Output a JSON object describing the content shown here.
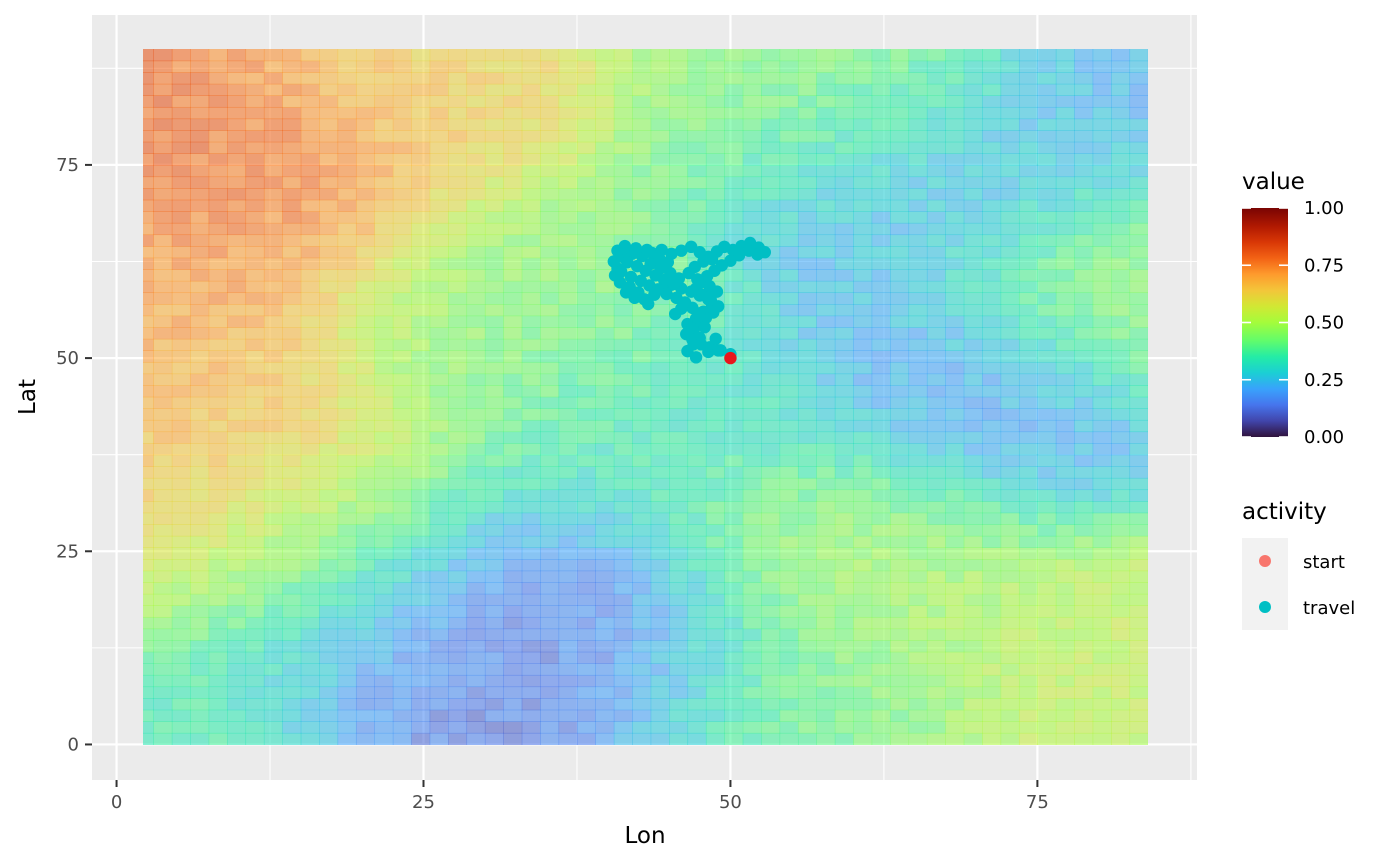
{
  "chart_data": {
    "type": "heatmap",
    "xlabel": "Lon",
    "ylabel": "Lat",
    "xlim": [
      -2,
      88
    ],
    "ylim": [
      -4.6,
      94.4
    ],
    "x_ticks": [
      0,
      25,
      50,
      75
    ],
    "y_ticks": [
      0,
      25,
      50,
      75
    ],
    "x_tick_labels": [
      "0",
      "25",
      "50",
      "75"
    ],
    "y_tick_labels": [
      "0",
      "25",
      "50",
      "75"
    ],
    "grid": true,
    "raster": {
      "x_range": [
        0,
        90
      ],
      "y_range": [
        0,
        90
      ],
      "colormap": "turbo",
      "opacity": 0.55,
      "hotspots": [
        {
          "x": 5,
          "y": 78,
          "value": 0.92
        },
        {
          "x": 3,
          "y": 86,
          "value": 0.85
        },
        {
          "x": 8,
          "y": 68,
          "value": 0.82
        },
        {
          "x": 2,
          "y": 62,
          "value": 0.75
        },
        {
          "x": 6,
          "y": 42,
          "value": 0.74
        },
        {
          "x": 3,
          "y": 30,
          "value": 0.7
        },
        {
          "x": 20,
          "y": 88,
          "value": 0.66
        },
        {
          "x": 33,
          "y": 6,
          "value": 0.04
        },
        {
          "x": 37,
          "y": 14,
          "value": 0.08
        },
        {
          "x": 22,
          "y": 15,
          "value": 0.15
        },
        {
          "x": 70,
          "y": 45,
          "value": 0.14
        },
        {
          "x": 68,
          "y": 73,
          "value": 0.16
        },
        {
          "x": 85,
          "y": 85,
          "value": 0.18
        },
        {
          "x": 82,
          "y": 60,
          "value": 0.5
        },
        {
          "x": 60,
          "y": 25,
          "value": 0.5
        },
        {
          "x": 85,
          "y": 10,
          "value": 0.55
        },
        {
          "x": 52,
          "y": 5,
          "value": 0.42
        },
        {
          "x": 45,
          "y": 40,
          "value": 0.32
        },
        {
          "x": 30,
          "y": 55,
          "value": 0.45
        },
        {
          "x": 60,
          "y": 85,
          "value": 0.45
        },
        {
          "x": 3,
          "y": 5,
          "value": 0.35
        },
        {
          "x": 15,
          "y": 25,
          "value": 0.48
        }
      ]
    },
    "series": [
      {
        "name": "travel",
        "color": "#00BFC4",
        "points": [
          [
            50,
            50.5
          ],
          [
            49.2,
            51
          ],
          [
            48.2,
            50.8
          ],
          [
            47.2,
            50.1
          ],
          [
            46.5,
            50.9
          ],
          [
            47,
            51.8
          ],
          [
            47.5,
            52.6
          ],
          [
            47,
            53.5
          ],
          [
            46.5,
            54.4
          ],
          [
            47.2,
            55.1
          ],
          [
            47.8,
            56
          ],
          [
            48.5,
            56.8
          ],
          [
            48.2,
            57.6
          ],
          [
            47.5,
            58.1
          ],
          [
            46.8,
            58.6
          ],
          [
            46,
            59
          ],
          [
            45.2,
            59.5
          ],
          [
            44.5,
            58.9
          ],
          [
            43.8,
            58.2
          ],
          [
            43,
            57.6
          ],
          [
            42.5,
            58.5
          ],
          [
            41.8,
            59.2
          ],
          [
            41,
            59.8
          ],
          [
            40.6,
            60.7
          ],
          [
            40.8,
            61.6
          ],
          [
            40.5,
            62.5
          ],
          [
            41.2,
            63.1
          ],
          [
            42,
            63.5
          ],
          [
            42.8,
            63.2
          ],
          [
            43.6,
            63.6
          ],
          [
            44.4,
            64
          ],
          [
            45.2,
            63.5
          ],
          [
            46,
            63.9
          ],
          [
            46.8,
            64.4
          ],
          [
            47.5,
            63.7
          ],
          [
            48.2,
            63.1
          ],
          [
            48.9,
            63.8
          ],
          [
            49.5,
            64.4
          ],
          [
            50.2,
            64
          ],
          [
            50.9,
            64.5
          ],
          [
            51.6,
            64.9
          ],
          [
            52.3,
            64.3
          ],
          [
            52.8,
            63.7
          ],
          [
            52.2,
            63.4
          ],
          [
            51.5,
            63.9
          ],
          [
            50.7,
            63.3
          ],
          [
            50,
            62.6
          ],
          [
            49.3,
            62
          ],
          [
            48.7,
            61.3
          ],
          [
            48.1,
            60.6
          ],
          [
            47.6,
            59.8
          ],
          [
            47.2,
            59
          ],
          [
            47.7,
            58.2
          ],
          [
            48.4,
            57.5
          ],
          [
            49,
            56.7
          ],
          [
            48.6,
            55.9
          ],
          [
            48,
            55.2
          ],
          [
            47.4,
            54.5
          ],
          [
            46.9,
            53.8
          ],
          [
            46.4,
            53.1
          ],
          [
            46.9,
            52.4
          ],
          [
            47.6,
            51.8
          ],
          [
            48.3,
            51.4
          ],
          [
            49,
            51
          ],
          [
            43.5,
            62.2
          ],
          [
            44.3,
            61.6
          ],
          [
            45.1,
            61
          ],
          [
            45.8,
            60.3
          ],
          [
            45.4,
            59.6
          ],
          [
            44.6,
            60.1
          ],
          [
            43.9,
            60.7
          ],
          [
            43.1,
            61.3
          ],
          [
            42.4,
            61.9
          ],
          [
            41.6,
            62.4
          ],
          [
            41.1,
            61.2
          ],
          [
            41.9,
            60.5
          ],
          [
            42.7,
            60
          ],
          [
            43.4,
            59.4
          ],
          [
            44.1,
            58.9
          ],
          [
            44.8,
            58.3
          ],
          [
            45.6,
            57.8
          ],
          [
            46.3,
            57.2
          ],
          [
            46.9,
            56.5
          ],
          [
            47.5,
            55.8
          ],
          [
            48.1,
            57.9
          ],
          [
            48.9,
            58.6
          ],
          [
            48.3,
            59.3
          ],
          [
            47.3,
            60.2
          ],
          [
            46.6,
            61
          ],
          [
            47.1,
            61.8
          ],
          [
            47.8,
            62.5
          ],
          [
            48.5,
            62.8
          ],
          [
            44.9,
            62.4
          ],
          [
            44.2,
            62.9
          ],
          [
            43.2,
            64
          ],
          [
            42.3,
            64.2
          ],
          [
            41.4,
            64.5
          ],
          [
            40.8,
            63.9
          ],
          [
            41.5,
            58.5
          ],
          [
            42.2,
            57.8
          ],
          [
            43.3,
            57
          ],
          [
            46,
            56.4
          ],
          [
            45.5,
            55.7
          ],
          [
            47.9,
            54
          ],
          [
            48.8,
            52.5
          ]
        ]
      },
      {
        "name": "start",
        "color": "#F8766D",
        "points": [
          [
            50,
            50
          ]
        ]
      }
    ]
  },
  "legend": {
    "value_title": "value",
    "value_ticks": [
      "1.00",
      "0.75",
      "0.50",
      "0.25",
      "0.00"
    ],
    "activity_title": "activity",
    "activity_items": [
      {
        "label": "start",
        "color": "#F8766D"
      },
      {
        "label": "travel",
        "color": "#00BFC4"
      }
    ]
  },
  "colors": {
    "panel_bg": "#EBEBEB",
    "grid_major": "#FFFFFF",
    "start_point_drawn": "#E8161B"
  }
}
